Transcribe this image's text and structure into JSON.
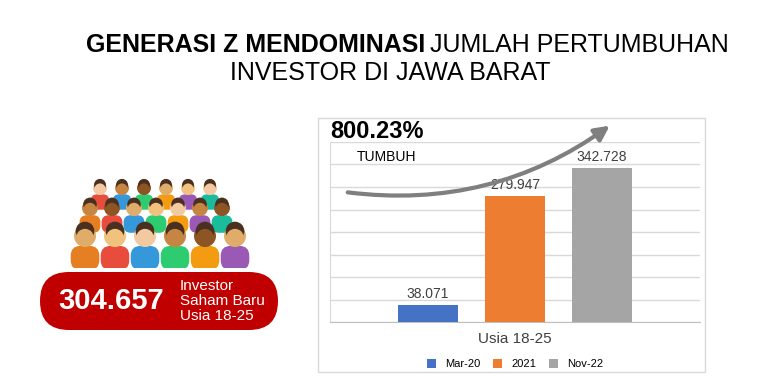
{
  "chart_data": {
    "type": "bar",
    "title": "GENERASI Z MENDOMINASI JUMLAH PERTUMBUHAN INVESTOR DI JAWA BARAT",
    "categories": [
      "Usia 18-25"
    ],
    "series": [
      {
        "name": "Mar-20",
        "color": "#4472c4",
        "values": [
          38071
        ],
        "value_labels": [
          "38.071"
        ]
      },
      {
        "name": "2021",
        "color": "#ed7d31",
        "values": [
          279947
        ],
        "value_labels": [
          "279.947"
        ]
      },
      {
        "name": "Nov-22",
        "color": "#a5a5a5",
        "values": [
          342728
        ],
        "value_labels": [
          "342.728"
        ]
      }
    ],
    "ylim": [
      0,
      400000
    ],
    "yticks": [
      0,
      50000,
      100000,
      150000,
      200000,
      250000,
      300000,
      350000,
      400000
    ],
    "grid": true,
    "tick_labels": "x",
    "data_labels": true,
    "legend": "bottom",
    "annotations": [
      {
        "text": "800.23%"
      },
      {
        "text": "TUMBUH"
      }
    ]
  },
  "highlight": {
    "value": 304657,
    "label": "304.657",
    "caption": "Investor\nSaham Baru\nUsia 18-25"
  }
}
